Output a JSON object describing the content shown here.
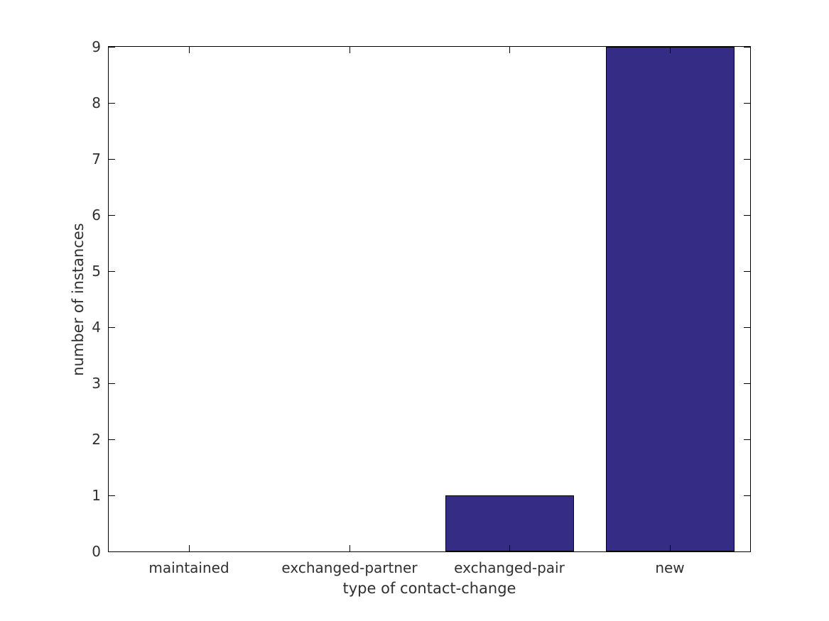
{
  "chart_data": {
    "type": "bar",
    "categories": [
      "maintained",
      "exchanged-partner",
      "exchanged-pair",
      "new"
    ],
    "values": [
      0,
      0,
      1,
      9
    ],
    "xlabel": "type of contact-change",
    "ylabel": "number of instances",
    "ylim": [
      0,
      9
    ],
    "yticks": [
      0,
      1,
      2,
      3,
      4,
      5,
      6,
      7,
      8,
      9
    ],
    "bar_width_fraction": 0.8,
    "bar_color": "#352c85",
    "bar_edge_color": "#000000",
    "axis_color": "#000000",
    "text_color": "#303030",
    "background_color": "#ffffff",
    "grid": false,
    "legend": null,
    "tick_style": "inward-mirrored"
  }
}
